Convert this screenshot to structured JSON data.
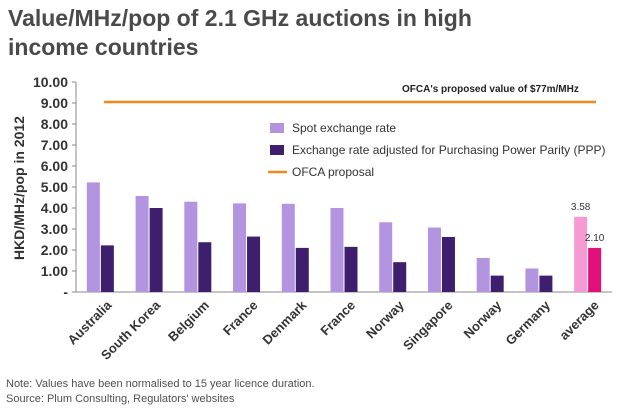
{
  "chart_data": {
    "type": "bar",
    "title": "Value/MHz/pop of 2.1 GHz auctions in high income countries",
    "ylabel": "HKD/MHz/pop in 2012",
    "ylim": [
      0,
      10
    ],
    "y_ticks": [
      "-",
      "1.00",
      "2.00",
      "3.00",
      "4.00",
      "5.00",
      "6.00",
      "7.00",
      "8.00",
      "9.00",
      "10.00"
    ],
    "categories": [
      "Australia",
      "South Korea",
      "Belgium",
      "France",
      "Denmark",
      "France",
      "Norway",
      "Singapore",
      "Norway",
      "Germany",
      "average"
    ],
    "series": [
      {
        "name": "Spot exchange rate",
        "color": "#b294e0",
        "highlight_color": "#f59ad2",
        "values": [
          5.22,
          4.57,
          4.3,
          4.22,
          4.2,
          4.0,
          3.32,
          3.07,
          1.62,
          1.12,
          3.58
        ]
      },
      {
        "name": "Exchange rate adjusted for Purchasing Power Parity (PPP)",
        "color": "#3d1f6e",
        "highlight_color": "#e0107a",
        "values": [
          2.22,
          4.0,
          2.37,
          2.64,
          2.1,
          2.15,
          1.42,
          2.62,
          0.78,
          0.78,
          2.1
        ]
      }
    ],
    "data_labels": [
      "3.58",
      "2.10"
    ],
    "reference_line": {
      "name": "OFCA proposal",
      "value": 9.05,
      "color": "#f08a1c",
      "annotation": "OFCA's proposed value of $77m/MHz"
    },
    "legend_position": "top-right inside",
    "grid": false
  },
  "notes": {
    "line1": "Note: Values have been normalised to 15 year licence duration.",
    "line2": "Source: Plum Consulting, Regulators' websites"
  }
}
